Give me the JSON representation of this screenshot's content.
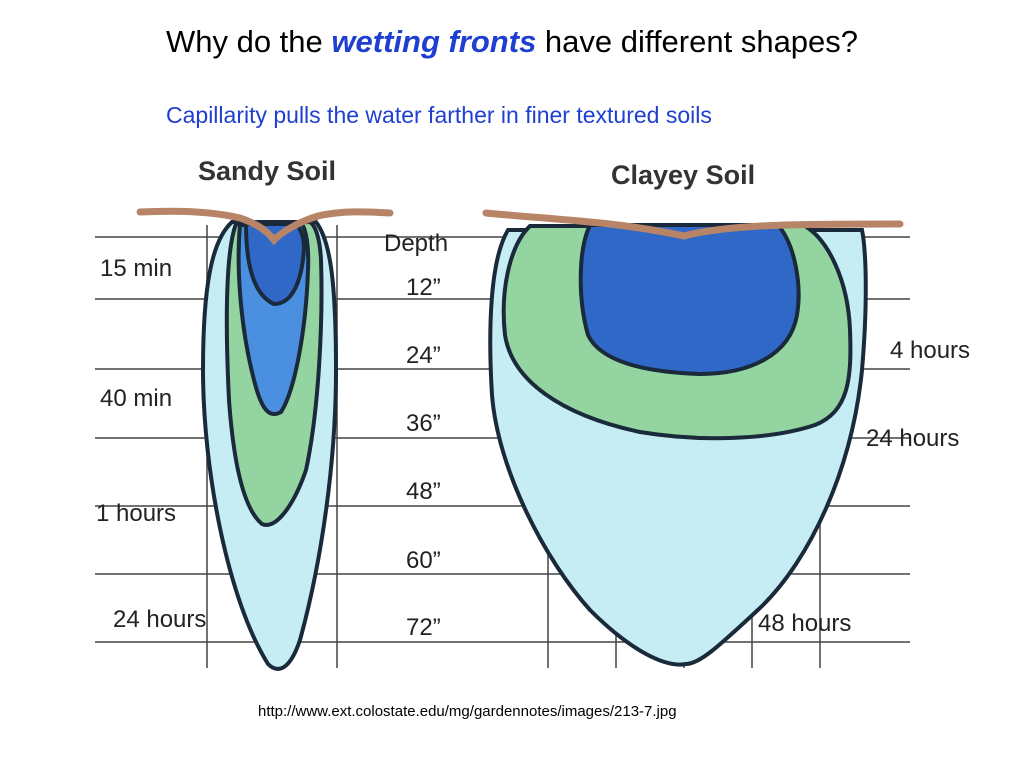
{
  "title": {
    "prefix": "Why do the ",
    "emphasis": "wetting fronts",
    "suffix": " have different shapes?"
  },
  "subtitle": "Capillarity pulls the water farther in finer textured soils",
  "sandy": {
    "heading": "Sandy Soil",
    "time_labels": [
      "15 min",
      "40 min",
      "1 hours",
      "24 hours"
    ]
  },
  "clayey": {
    "heading": "Clayey Soil",
    "time_labels": [
      "4 hours",
      "24 hours",
      "48 hours"
    ]
  },
  "depth": {
    "label": "Depth",
    "values": [
      "12”",
      "24”",
      "36”",
      "48”",
      "60”",
      "72”"
    ]
  },
  "source": "http://www.ext.colostate.edu/mg/gardennotes/images/213-7.jpg",
  "colors": {
    "outer": "#c6ecf4",
    "green": "#94d4a0",
    "mid_blue": "#4a8fe0",
    "dark_blue": "#3068c8",
    "surface": "#b88468",
    "grid": "#444444",
    "outline": "#1a2a3a"
  }
}
